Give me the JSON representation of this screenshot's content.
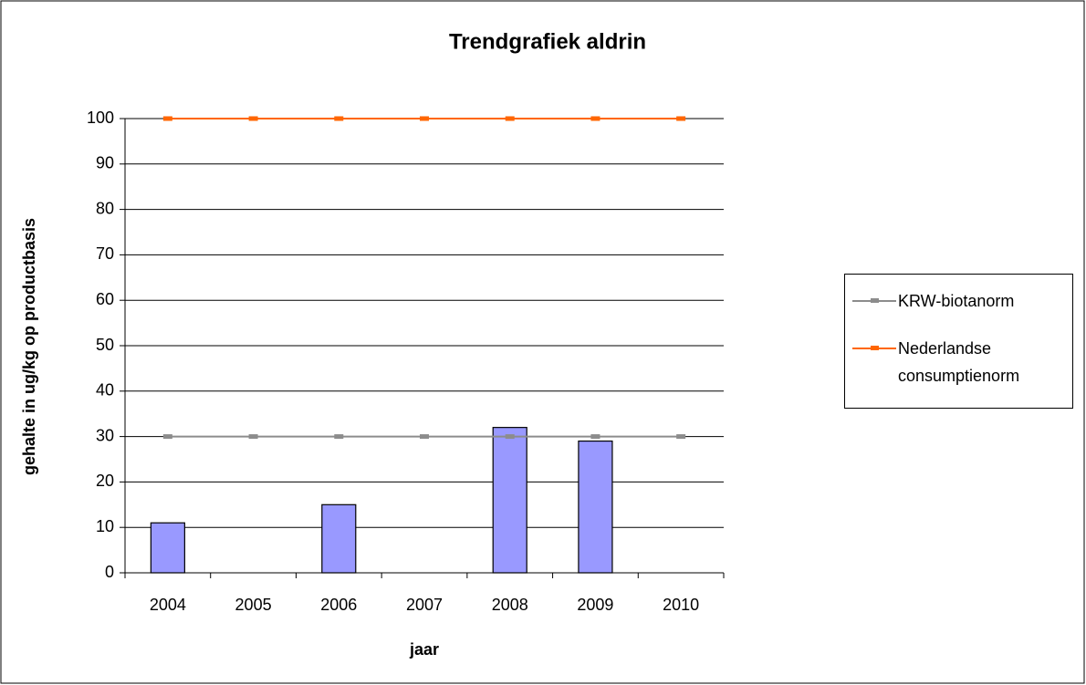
{
  "chart_data": {
    "type": "bar",
    "title": "Trendgrafiek aldrin",
    "xlabel": "jaar",
    "ylabel": "gehalte in ug/kg op productbasis",
    "categories": [
      "2004",
      "2005",
      "2006",
      "2007",
      "2008",
      "2009",
      "2010"
    ],
    "series": [
      {
        "type": "bar",
        "color": "#9999ff",
        "values": [
          11,
          null,
          15,
          null,
          32,
          29,
          null
        ]
      },
      {
        "type": "line",
        "name": "KRW-biotanorm",
        "color": "#8c8c8c",
        "values": [
          30,
          30,
          30,
          30,
          30,
          30,
          30
        ]
      },
      {
        "type": "line",
        "name": "Nederlandse consumptienorm",
        "color": "#ff6600",
        "values": [
          100,
          100,
          100,
          100,
          100,
          100,
          100
        ]
      }
    ],
    "ylim": [
      0,
      100
    ],
    "yticks": [
      0,
      10,
      20,
      30,
      40,
      50,
      60,
      70,
      80,
      90,
      100
    ],
    "grid": true,
    "legend": "right"
  }
}
